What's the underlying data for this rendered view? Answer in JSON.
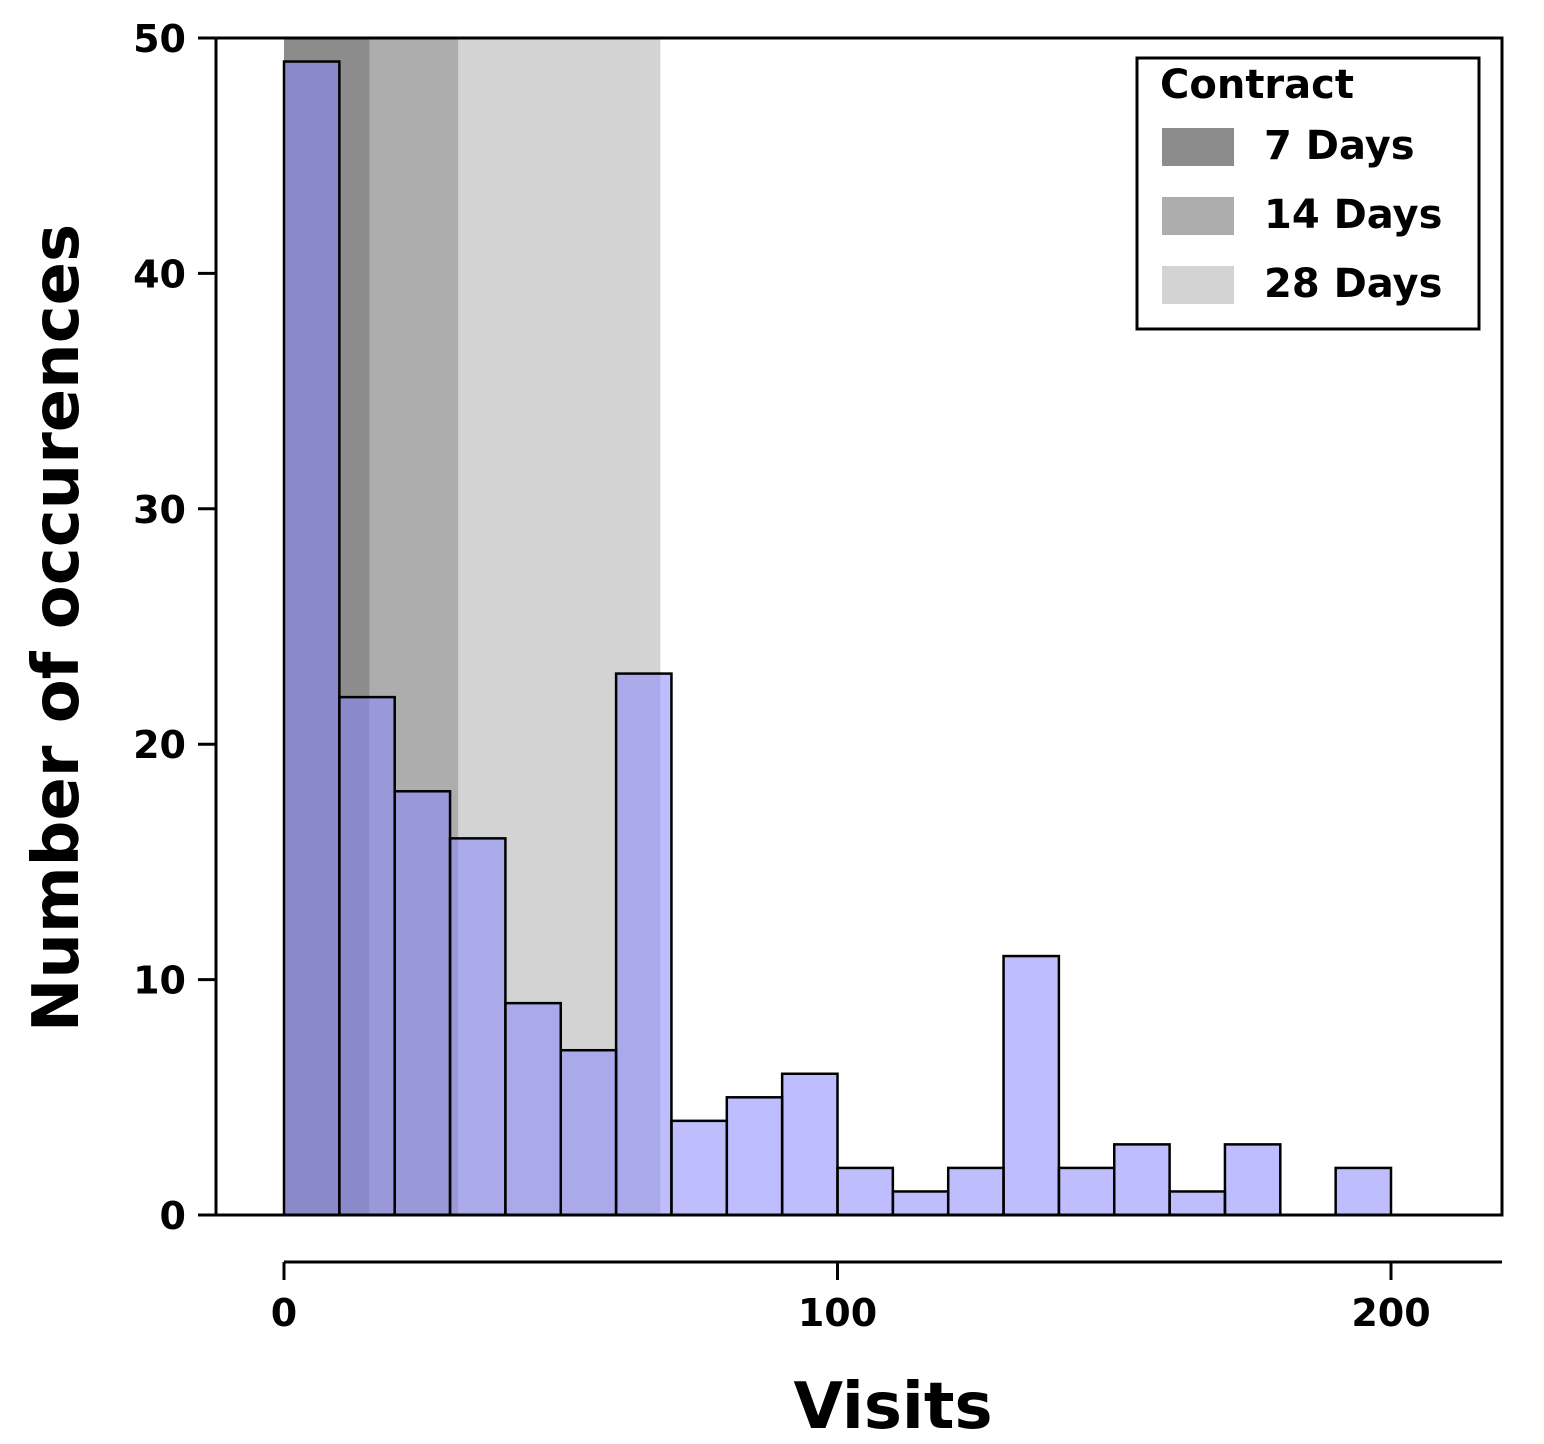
{
  "chart_data": {
    "type": "bar",
    "title": "",
    "xlabel": "Visits",
    "ylabel": "Number of occurences",
    "xlim": [
      0,
      220
    ],
    "ylim": [
      0,
      50
    ],
    "x_ticks": [
      0,
      100,
      200
    ],
    "y_ticks": [
      0,
      10,
      20,
      30,
      40,
      50
    ],
    "bin_width": 10,
    "bins": [
      {
        "start": 0,
        "value": 49
      },
      {
        "start": 10,
        "value": 22
      },
      {
        "start": 20,
        "value": 18
      },
      {
        "start": 30,
        "value": 16
      },
      {
        "start": 40,
        "value": 9
      },
      {
        "start": 50,
        "value": 7
      },
      {
        "start": 60,
        "value": 23
      },
      {
        "start": 70,
        "value": 4
      },
      {
        "start": 80,
        "value": 5
      },
      {
        "start": 90,
        "value": 6
      },
      {
        "start": 100,
        "value": 2
      },
      {
        "start": 110,
        "value": 1
      },
      {
        "start": 120,
        "value": 2
      },
      {
        "start": 130,
        "value": 11
      },
      {
        "start": 140,
        "value": 2
      },
      {
        "start": 150,
        "value": 3
      },
      {
        "start": 160,
        "value": 1
      },
      {
        "start": 170,
        "value": 3
      },
      {
        "start": 180,
        "value": 0
      },
      {
        "start": 190,
        "value": 2
      },
      {
        "start": 200,
        "value": 0
      },
      {
        "start": 210,
        "value": 0
      }
    ],
    "bar_color": "#8888ff",
    "bar_edge_color": "#000000",
    "legend": {
      "title": "Contract",
      "position": "top-right",
      "entries": [
        {
          "label": "7 Days",
          "color": "#8c8c8c",
          "range": [
            0,
            15.5
          ]
        },
        {
          "label": "14 Days",
          "color": "#adadad",
          "range": [
            15.5,
            31.5
          ]
        },
        {
          "label": "28 Days",
          "color": "#d3d3d3",
          "range": [
            31.5,
            68
          ]
        }
      ]
    }
  }
}
